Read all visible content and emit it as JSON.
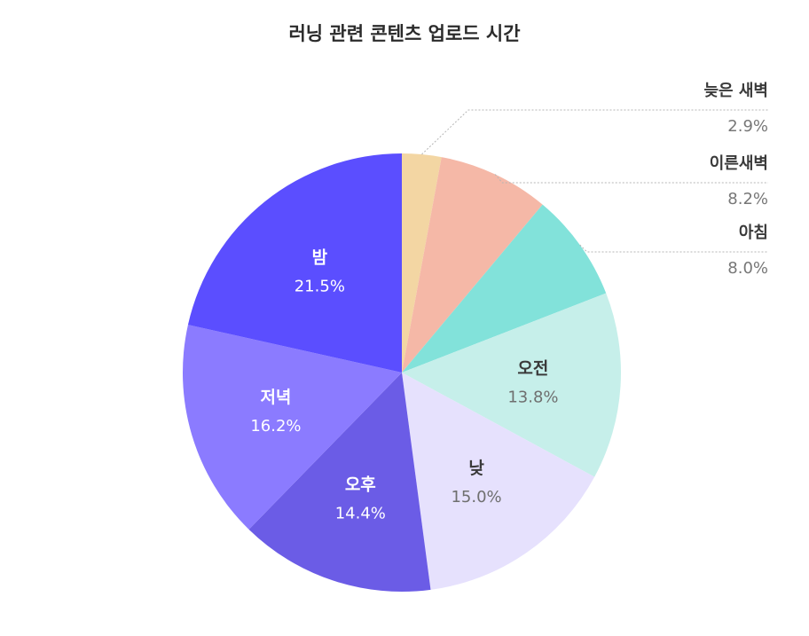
{
  "title": "러닝 관련 콘텐츠 업로드 시간",
  "chart_data": {
    "type": "pie",
    "title": "러닝 관련 콘텐츠 업로드 시간",
    "start_angle": "12 o'clock",
    "direction": "clockwise",
    "slices": [
      {
        "label": "늦은 새벽",
        "value": 2.9,
        "value_label": "2.9%",
        "color": "#F3D6A3",
        "label_position": "outside"
      },
      {
        "label": "이른새벽",
        "value": 8.2,
        "value_label": "8.2%",
        "color": "#F5B8A7",
        "label_position": "outside"
      },
      {
        "label": "아침",
        "value": 8.0,
        "value_label": "8.0%",
        "color": "#82E2DA",
        "label_position": "outside"
      },
      {
        "label": "오전",
        "value": 13.8,
        "value_label": "13.8%",
        "color": "#C6EFEA",
        "label_position": "inside",
        "text_color": "dark"
      },
      {
        "label": "낮",
        "value": 15.0,
        "value_label": "15.0%",
        "color": "#E6E1FD",
        "label_position": "inside",
        "text_color": "dark"
      },
      {
        "label": "오후",
        "value": 14.4,
        "value_label": "14.4%",
        "color": "#6B5CE6",
        "label_position": "inside",
        "text_color": "light"
      },
      {
        "label": "저녁",
        "value": 16.2,
        "value_label": "16.2%",
        "color": "#8B7BFF",
        "label_position": "inside",
        "text_color": "light"
      },
      {
        "label": "밤",
        "value": 21.5,
        "value_label": "21.5%",
        "color": "#5B4EFF",
        "label_position": "inside",
        "text_color": "light"
      }
    ]
  }
}
